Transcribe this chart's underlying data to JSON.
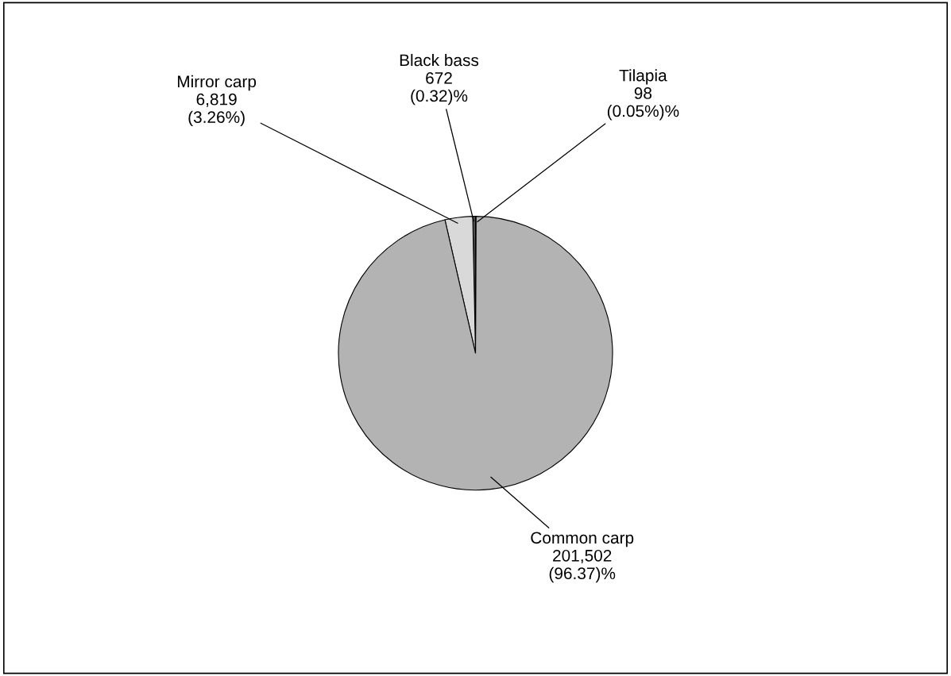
{
  "chart_data": {
    "type": "pie",
    "categories": [
      "Black bass",
      "Mirror carp",
      "Common carp",
      "Tilapia"
    ],
    "values": [
      672,
      6819,
      201502,
      98
    ],
    "value_labels": [
      "672\n(0.32)%",
      "6,819\n(3.26%)",
      "201,502\n(96.37)%",
      "98\n(0.05%)%"
    ],
    "colors": [
      "#555555",
      "#d9d9d9",
      "#b3b3b3",
      "#000000"
    ]
  }
}
